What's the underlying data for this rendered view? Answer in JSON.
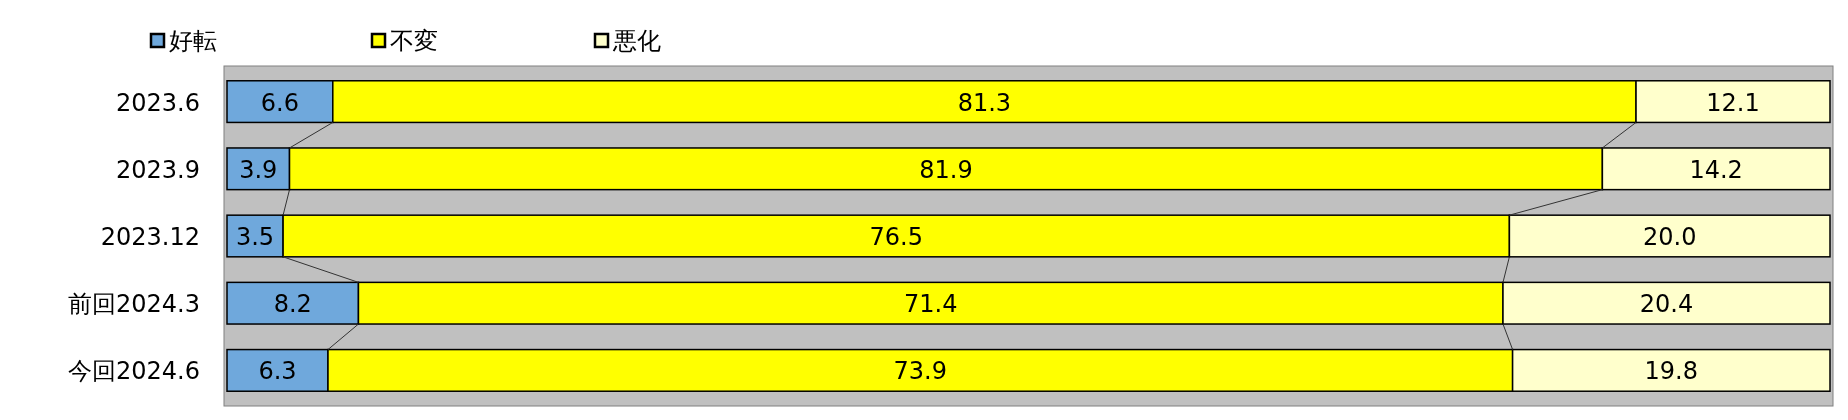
{
  "chart_data": {
    "type": "bar",
    "orientation": "horizontal",
    "stacked": true,
    "legend": "top left",
    "xlim": [
      0,
      100
    ],
    "tick_labels": "y",
    "categories": [
      "2023.6",
      "2023.9",
      "2023.12",
      "前回2024.3",
      "今回2024.6"
    ],
    "series": [
      {
        "name": "好転",
        "color": "#6fa8dc",
        "values": [
          6.6,
          3.9,
          3.5,
          8.2,
          6.3
        ],
        "value_labels": [
          "6.6",
          "3.9",
          "3.5",
          "8.2",
          "6.3"
        ]
      },
      {
        "name": "不変",
        "color": "#ffff00",
        "values": [
          81.3,
          81.9,
          76.5,
          71.4,
          73.9
        ],
        "value_labels": [
          "81.3",
          "81.9",
          "76.5",
          "71.4",
          "73.9"
        ]
      },
      {
        "name": "悪化",
        "color": "#ffffcc",
        "values": [
          12.1,
          14.2,
          20.0,
          20.4,
          19.8
        ],
        "value_labels": [
          "12.1",
          "14.2",
          "20.0",
          "20.4",
          "19.8"
        ]
      }
    ]
  }
}
